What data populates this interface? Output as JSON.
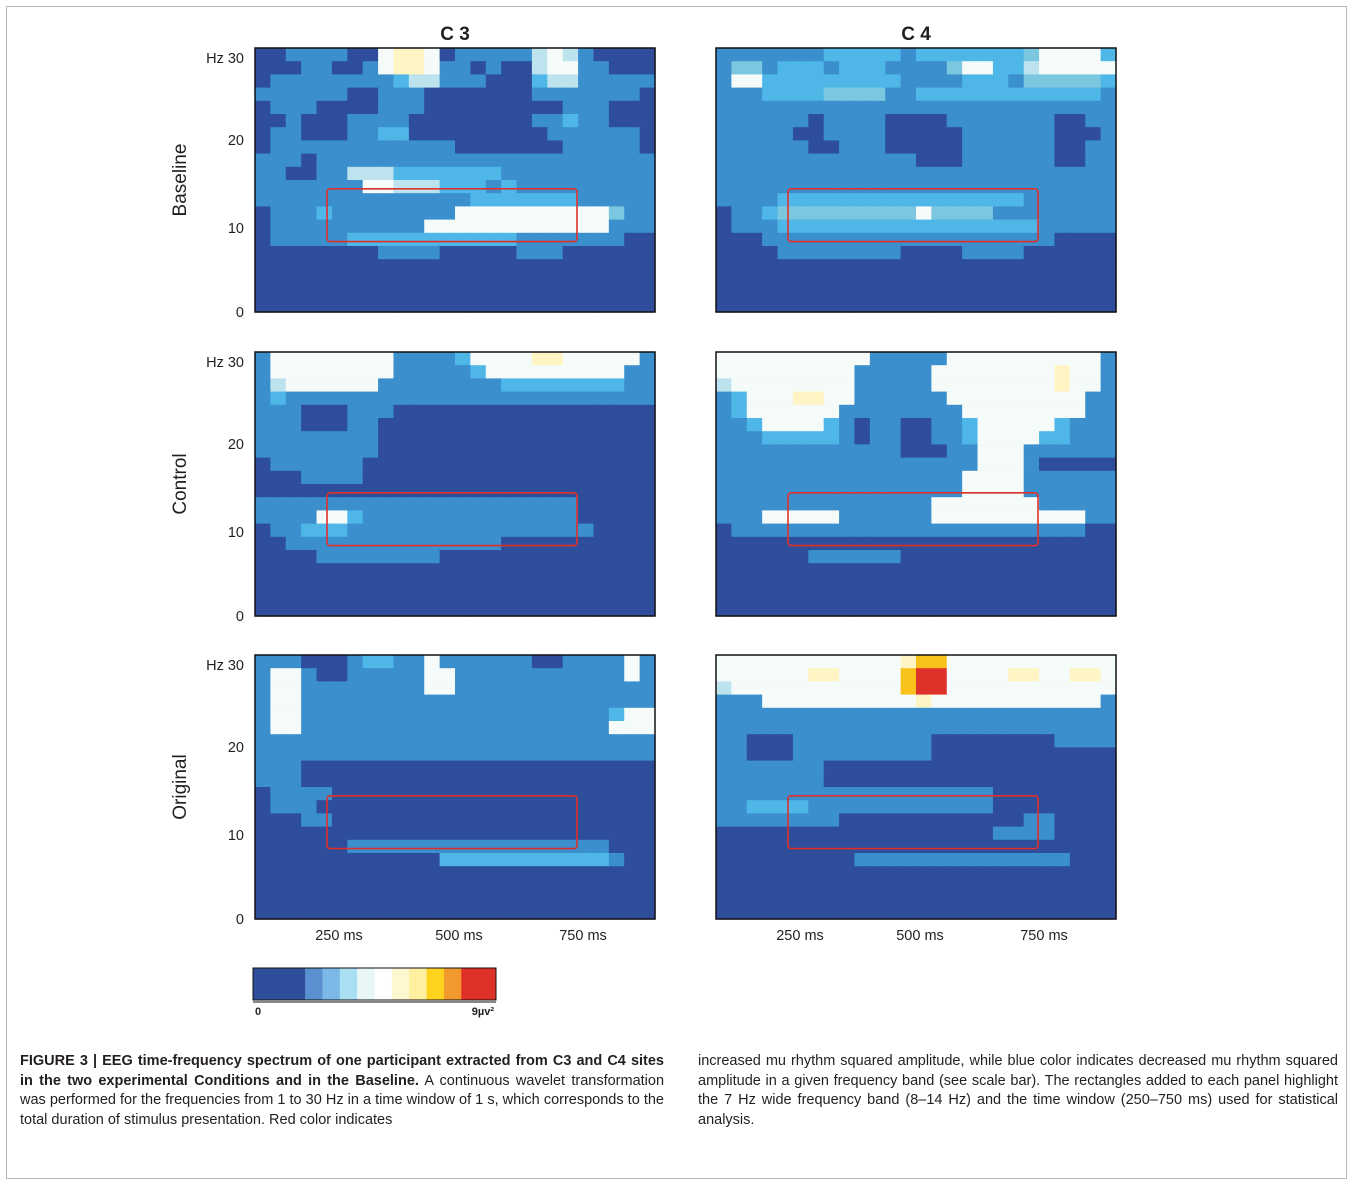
{
  "figure": {
    "columns": [
      "C 3",
      "C 4"
    ],
    "rows": [
      "Baseline",
      "Control",
      "Original"
    ],
    "y_ticks": [
      "Hz 30",
      "20",
      "10",
      "0"
    ],
    "x_ticks": [
      "250 ms",
      "500 ms",
      "750 ms"
    ],
    "scale_bar": {
      "min_label": "0",
      "max_label": "9µv²",
      "colors": [
        "#2e4e9b",
        "#2e4e9b",
        "#2e4e9b",
        "#5a8fd0",
        "#7ab8e6",
        "#a9def3",
        "#e8f6f7",
        "#ffffff",
        "#fff7d0",
        "#fff0a0",
        "#ffd21e",
        "#f29a2e",
        "#e0302a",
        "#e0302a"
      ]
    },
    "roi_color": "#e0302a",
    "colormap": {
      "0": "#2e4e9b",
      "1": "#3a8fcc",
      "2": "#4fb7e8",
      "3": "#7cc7e0",
      "4": "#bde3ef",
      "5": "#f5fbf9",
      "6": "#fff4c4",
      "7": "#f9c21a",
      "8": "#e0302a"
    },
    "panels": [
      {
        "row": "Baseline",
        "site": "C 3",
        "heatmap": [
          "00111100566501111145410000",
          "00011001566511010045511000",
          "01111111124411100024411111",
          "11111100111000000011111110",
          "01110000111000000000111000",
          "00100011110000000011211000",
          "01100011220000000001111110",
          "01111111111110000000111110",
          "11101111111111111111111111",
          "11001144422222221111111111",
          "11111115544422212111111111",
          "11111111111111222222211111",
          "01112111111115555555555311",
          "01111111111555555555555111",
          "01111122222222222111111100",
          "00000000111100000111000000",
          "00000000000000000000000000",
          "00000000000000000000000000",
          "00000000000000000000000000",
          "00000000000000000000000000"
        ]
      },
      {
        "row": "Baseline",
        "site": "C 4",
        "heatmap": [
          "11111112222212222222355552",
          "13312221222111135522455555",
          "15522222222211112221333332",
          "11122223333112222222222221",
          "11111111111111111111111111",
          "11111101111000011111110011",
          "11111001111000001111110001",
          "11111100111000001111110011",
          "11111111111110001111110011",
          "11111111111111111111111111",
          "11111111111111111111111111",
          "11112222222222222222111111",
          "01123333333335333311111111",
          "01112222222222222222211111",
          "00011111111111111111110000",
          "00001111111100001111000000",
          "00000000000000000000000000",
          "00000000000000000000000000",
          "00000000000000000000000000",
          "00000000000000000000000000"
        ]
      },
      {
        "row": "Control",
        "site": "C 3",
        "heatmap": [
          "15555555511112555566555551",
          "15555555511111255555555511",
          "14555555111111112222222211",
          "12111111111111111111111111",
          "11100011100000000000000000",
          "11100011000000000000000000",
          "11111111000000000000000000",
          "11111111000000000000000000",
          "01111110000000000000000000",
          "00011110000000000000000000",
          "00000000000000000000000000",
          "11111111111111111111100000",
          "11115521111111111111100000",
          "01122211111111111111110000",
          "00111111111111110000000000",
          "00001111111100000000000000",
          "00000000000000000000000000",
          "00000000000000000000000000",
          "00000000000000000000000000",
          "00000000000000000000000000"
        ]
      },
      {
        "row": "Control",
        "site": "C 4",
        "heatmap": [
          "55555555551111155555555551",
          "55555555511111555555556551",
          "45555555511111555555556551",
          "12555665511111155555555511",
          "12555555111111115555555511",
          "11255552101100112555552111",
          "11122222101100112555522111",
          "11111111111100011555111111",
          "11111111111111111555100000",
          "11111111111111115555111111",
          "11111111111111115555111111",
          "11111111111111555555511111",
          "11155555111111555555555511",
          "01111111111111111111111100",
          "00000000000000000000000000",
          "00000011111100000000000000",
          "00000000000000000000000000",
          "00000000000000000000000000",
          "00000000000000000000000000",
          "00000000000000000000000000"
        ]
      },
      {
        "row": "Original",
        "site": "C 3",
        "heatmap": [
          "11100012211511111100111151",
          "15510011111551111111111151",
          "15511111111551111111111111",
          "15511111111111111111111111",
          "15511111111111111111111255",
          "15511111111111111111111555",
          "11111111111111111111111111",
          "11111111111111111111111111",
          "11100000000000000000000000",
          "11100000000000000000000000",
          "01111000000000000000000000",
          "01110000000000000000000000",
          "00011000000000000000000000",
          "00000000000000000000000000",
          "00000011111111111111111000",
          "00000000000022222222222100",
          "00000000000000000000000000",
          "00000000000000000000000000",
          "00000000000000000000000000",
          "00000000000000000000000000"
        ]
      },
      {
        "row": "Original",
        "site": "C 4",
        "heatmap": [
          "55555555555567755555555555",
          "55555566555578855556655665",
          "45555555555578855555555555",
          "11155555555556555555555551",
          "11111111111111111111111111",
          "11111111111111111111111111",
          "11000111111111000000001111",
          "11000111111111000000000000",
          "11111110000000000000000000",
          "11111110000000000000000000",
          "11111111111111111100000000",
          "11222211111111111100000000",
          "11111111000000000000110000",
          "00000000000000000011110000",
          "00000000000000000000000000",
          "00000000011111111111111000",
          "00000000000000000000000000",
          "00000000000000000000000000",
          "00000000000000000000000000",
          "00000000000000000000000000"
        ]
      }
    ]
  },
  "caption": {
    "label": "FIGURE 3 | EEG time-frequency spectrum of one participant extracted from C3 and C4 sites in the two experimental Conditions and in the Baseline.",
    "text": "A continuous wavelet transformation was performed for the frequencies from 1 to 30 Hz in a time window of 1 s, which corresponds to the total duration of stimulus presentation. Red color indicates",
    "text_right": "increased mu rhythm squared amplitude, while blue color indicates decreased mu rhythm squared amplitude in a given frequency band (see scale bar). The rectangles added to each panel highlight the 7 Hz wide frequency band (8–14 Hz) and the time window (250–750 ms) used for statistical analysis."
  }
}
